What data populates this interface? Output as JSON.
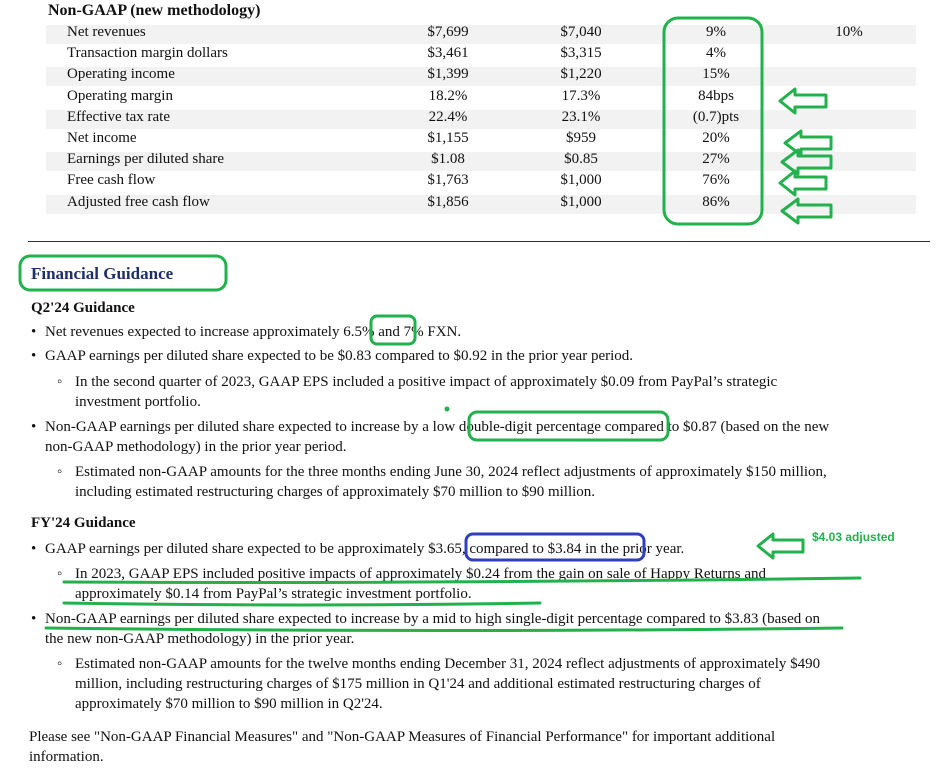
{
  "table": {
    "header": "Non-GAAP (new methodology)",
    "rows": [
      {
        "label": "Net revenues",
        "v1": "$7,699",
        "v2": "$7,040",
        "v3": "9%",
        "v4": "10%"
      },
      {
        "label": "Transaction margin dollars",
        "v1": "$3,461",
        "v2": "$3,315",
        "v3": "4%",
        "v4": ""
      },
      {
        "label": "Operating income",
        "v1": "$1,399",
        "v2": "$1,220",
        "v3": "15%",
        "v4": ""
      },
      {
        "label": "Operating margin",
        "v1": "18.2%",
        "v2": "17.3%",
        "v3": "84bps",
        "v4": ""
      },
      {
        "label": "Effective tax rate",
        "v1": "22.4%",
        "v2": "23.1%",
        "v3": "(0.7)pts",
        "v4": ""
      },
      {
        "label": "Net income",
        "v1": "$1,155",
        "v2": "$959",
        "v3": "20%",
        "v4": ""
      },
      {
        "label": "Earnings per diluted share",
        "v1": "$1.08",
        "v2": "$0.85",
        "v3": "27%",
        "v4": ""
      },
      {
        "label": "Free cash flow",
        "v1": "$1,763",
        "v2": "$1,000",
        "v3": "76%",
        "v4": ""
      },
      {
        "label": "Adjusted free cash flow",
        "v1": "$1,856",
        "v2": "$1,000",
        "v3": "86%",
        "v4": ""
      }
    ]
  },
  "guidance": {
    "title": "Financial Guidance",
    "q2": {
      "heading": "Q2'24 Guidance",
      "b1_pre": "Net revenues expected to increase approximately ",
      "b1_hl": "6.5%",
      "b1_post": " and 7% FXN.",
      "b2": "GAAP earnings per diluted share expected to be $0.83 compared to $0.92 in the prior year period.",
      "b2_sub_l1": "In the second quarter of 2023, GAAP EPS included a positive impact of approximately $0.09 from PayPal’s strategic",
      "b2_sub_l2": "investment portfolio.",
      "b3_pre": "Non-GAAP earnings per diluted share expected to increase by a ",
      "b3_hl": "low double-digit percentage",
      "b3_post": " compared to $0.87 (based on the new",
      "b3_l2": "non-GAAP methodology) in the prior year period.",
      "b3_sub_l1": "Estimated non-GAAP amounts for the three months ending June 30, 2024 reflect adjustments of approximately $150 million,",
      "b3_sub_l2": "including estimated restructuring charges of approximately $70 million to $90 million."
    },
    "fy": {
      "heading": "FY'24 Guidance",
      "b1_pre": "GAAP earnings per diluted share expected to be approximately ",
      "b1_hl": "$3.65, compared to $3.84",
      "b1_post": " in the prior year.",
      "b1_sub_l1": "In 2023, GAAP EPS included positive impacts of approximately $0.24 from the gain on sale of Happy Returns and",
      "b1_sub_l2": "approximately $0.14 from PayPal’s strategic investment portfolio.",
      "b2_l1": "Non-GAAP earnings per diluted share expected to increase by a mid to high single-digit percentage compared to $3.83 (based on",
      "b2_l2": "the new non-GAAP methodology) in the prior year.",
      "b2_sub_l1": "Estimated non-GAAP amounts for the twelve months ending December 31, 2024 reflect adjustments of approximately $490",
      "b2_sub_l2": "million, including restructuring charges of $175 million in Q1'24 and additional estimated restructuring charges of",
      "b2_sub_l3": "approximately $70 million to $90 million in Q2'24."
    },
    "footer_l1": "Please see \"Non-GAAP Financial Measures\" and \"Non-GAAP Measures of Financial Performance\" for important additional",
    "footer_l2": "information.",
    "annotation": "$4.03 adjusted"
  },
  "colors": {
    "annotation_green": "#22b14c",
    "annotation_blue": "#2f3fbf",
    "title_blue": "#1f2f6b"
  }
}
